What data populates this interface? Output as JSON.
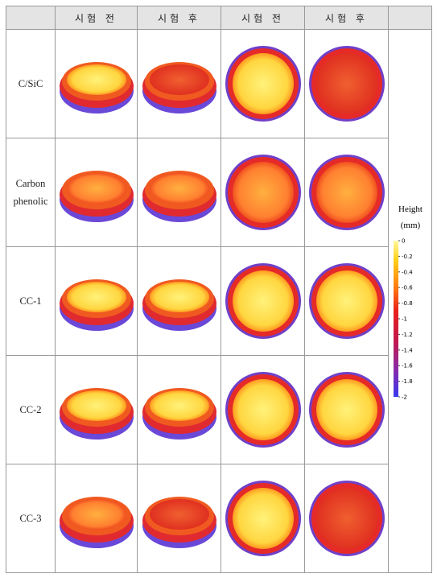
{
  "table": {
    "header": [
      "시험 전",
      "시험 후",
      "시험 전",
      "시험 후"
    ],
    "rows": [
      "C/SiC",
      "Carbon phenolic",
      "CC-1",
      "CC-2",
      "CC-3"
    ]
  },
  "colorbar": {
    "title": "Height",
    "unit": "(mm)",
    "ticks": [
      0,
      -0.2,
      -0.4,
      -0.6,
      -0.8,
      -1,
      -1.2,
      -1.4,
      -1.6,
      -1.8,
      -2
    ]
  }
}
